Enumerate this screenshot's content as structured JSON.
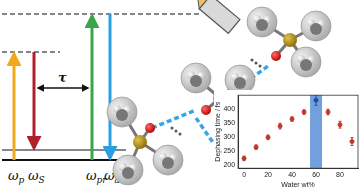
{
  "diagram": {
    "levels": {
      "arrows": [
        {
          "symbol": "ω",
          "subscript": "p",
          "color": "#f2a81d"
        },
        {
          "symbol": "ω",
          "subscript": "S",
          "color": "#b0202a"
        },
        {
          "symbol": "ω",
          "subscript": "pr",
          "color": "#3aa64a"
        },
        {
          "symbol": "ω",
          "subscript": "aS",
          "color": "#2a9fe0"
        }
      ],
      "delay": "τ"
    }
  },
  "chart_data": {
    "type": "scatter",
    "xlabel": "Water wt%",
    "ylabel": "Dephasing time / fs",
    "x": [
      0,
      10,
      20,
      30,
      40,
      50,
      60,
      70,
      80,
      90
    ],
    "values": [
      225,
      265,
      300,
      340,
      365,
      390,
      432,
      390,
      345,
      285
    ],
    "errors": [
      8,
      8,
      8,
      10,
      8,
      8,
      18,
      10,
      12,
      14
    ],
    "colors": [
      "#c0392b",
      "#c0392b",
      "#c0392b",
      "#c0392b",
      "#c0392b",
      "#c0392b",
      "#1f4e9c",
      "#c0392b",
      "#c0392b",
      "#c0392b"
    ],
    "highlight": {
      "xmin": 55,
      "xmax": 65,
      "color": "#5b8fd6"
    },
    "xlim": [
      -5,
      95
    ],
    "xticks": [
      0,
      20,
      40,
      60,
      80
    ],
    "ylim": [
      190,
      450
    ],
    "yticks": [
      200,
      250,
      300,
      350,
      400
    ],
    "grid": false,
    "marker": "circle"
  }
}
